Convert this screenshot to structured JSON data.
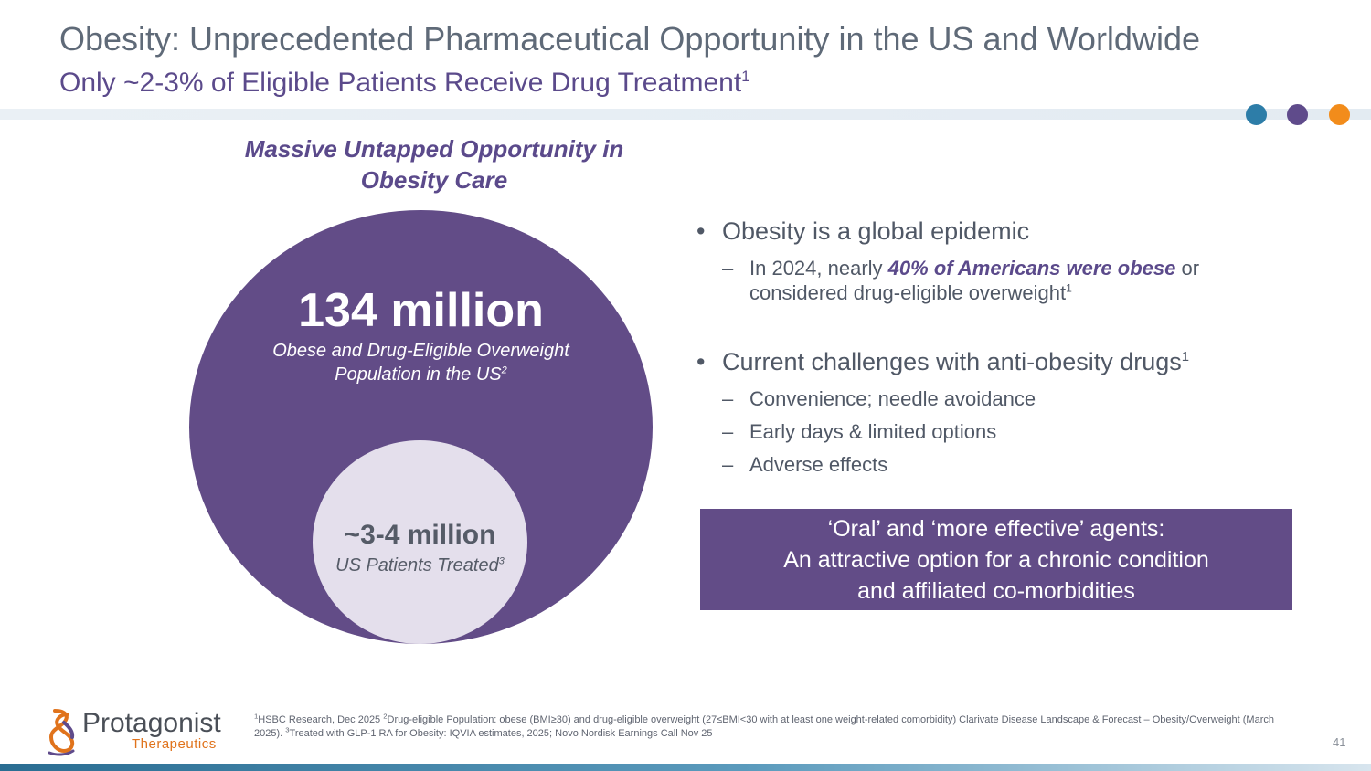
{
  "header": {
    "title": "Obesity: Unprecedented Pharmaceutical Opportunity in the US and Worldwide",
    "subtitle": "Only ~2-3% of Eligible Patients Receive Drug Treatment",
    "subtitle_sup": "1"
  },
  "brand_colors": {
    "teal": "#2d7da8",
    "purple": "#5f4b8b",
    "orange": "#f28c1b"
  },
  "diagram": {
    "heading": "Massive Untapped Opportunity in Obesity Care",
    "outer": {
      "value": "134 million",
      "label": "Obese and Drug-Eligible Overweight Population in the US",
      "label_sup": "2"
    },
    "inner": {
      "value": "~3-4 million",
      "label": "US Patients Treated",
      "label_sup": "3"
    }
  },
  "bullets": {
    "b1": {
      "text": "Obesity is a global epidemic"
    },
    "b1_sub": {
      "pre": "In 2024, nearly ",
      "emph": "40% of Americans were obese",
      "post": " or",
      "line2": "considered drug-eligible overweight",
      "sup": "1"
    },
    "b2": {
      "text": "Current challenges with anti-obesity drugs",
      "sup": "1"
    },
    "b2_subs": [
      "Convenience; needle avoidance",
      "Early days & limited options",
      "Adverse effects"
    ]
  },
  "callout": {
    "line1": "‘Oral’ and ‘more effective’ agents:",
    "line2": "An attractive option for a chronic condition",
    "line3": "and affiliated co-morbidities"
  },
  "footer": {
    "logo_name": "Protagonist",
    "logo_sub": "Therapeutics",
    "footnote_1_sup": "1",
    "footnote_1": "HSBC Research, Dec 2025 ",
    "footnote_2_sup": "2",
    "footnote_2": "Drug-eligible Population: obese (BMI≥30) and drug-eligible overweight (27≤BMI<30 with at least one weight-related comorbidity) Clarivate Disease Landscape & Forecast – Obesity/Overweight (March 2025). ",
    "footnote_3_sup": "3",
    "footnote_3": "Treated with GLP-1 RA for Obesity: IQVIA estimates, 2025; Novo Nordisk Earnings Call Nov 25",
    "page_number": "41"
  }
}
